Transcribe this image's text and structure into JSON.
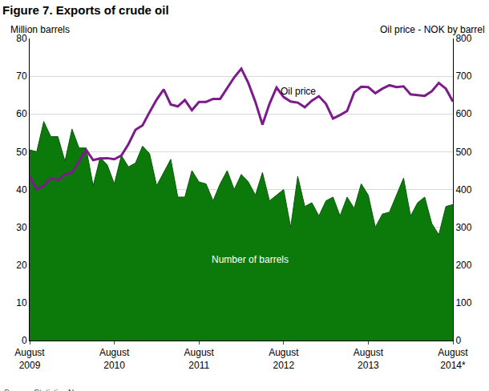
{
  "chart_data": {
    "type": "area",
    "title": "Figure 7. Exports of crude oil",
    "ylabel": "Million barrels",
    "y2label": "Oil price - NOK by barrel",
    "source": "Source: Statistics Norway.",
    "grid": true,
    "categories": [
      "August 2009",
      null,
      null,
      null,
      null,
      null,
      null,
      null,
      null,
      null,
      null,
      null,
      "August 2010",
      null,
      null,
      null,
      null,
      null,
      null,
      null,
      null,
      null,
      null,
      null,
      "August 2011",
      null,
      null,
      null,
      null,
      null,
      null,
      null,
      null,
      null,
      null,
      null,
      "August 2012",
      null,
      null,
      null,
      null,
      null,
      null,
      null,
      null,
      null,
      null,
      null,
      "August 2013",
      null,
      null,
      null,
      null,
      null,
      null,
      null,
      null,
      null,
      null,
      null,
      "August 2014*"
    ],
    "series": [
      {
        "name": "Number of barrels",
        "type": "area",
        "color": "#0b7a0b",
        "values": [
          50.5,
          50,
          58,
          54,
          54,
          47.5,
          56,
          51,
          51,
          41,
          48.5,
          46.5,
          41.5,
          49,
          46,
          47,
          51.5,
          49.5,
          41,
          44.5,
          48,
          38,
          38,
          45,
          42,
          41.5,
          37,
          41.5,
          45,
          40,
          44,
          42,
          38.5,
          44.5,
          37,
          38.5,
          40,
          30,
          43.5,
          35.5,
          36.5,
          33,
          37,
          38,
          33,
          38,
          35,
          41.5,
          38.5,
          30,
          33.5,
          34,
          38.5,
          43,
          33,
          36.5,
          38,
          31,
          28,
          35.5,
          36
        ]
      },
      {
        "name": "Oil price",
        "type": "line",
        "axis": "y2",
        "color": "#7d1a8c",
        "values": [
          435,
          400,
          410,
          430,
          425,
          440,
          445,
          475,
          505,
          478,
          482,
          483,
          480,
          490,
          520,
          558,
          570,
          605,
          638,
          665,
          625,
          620,
          637,
          610,
          632,
          632,
          640,
          640,
          668,
          697,
          720,
          682,
          632,
          572,
          627,
          670,
          645,
          633,
          630,
          618,
          635,
          647,
          627,
          588,
          597,
          608,
          657,
          672,
          671,
          655,
          667,
          676,
          671,
          673,
          652,
          650,
          648,
          660,
          682,
          667,
          633
        ]
      }
    ],
    "ylim": [
      0,
      80
    ],
    "yticks": [
      0,
      10,
      20,
      30,
      40,
      50,
      60,
      70,
      80
    ],
    "y2lim": [
      0,
      800
    ],
    "y2ticks": [
      0,
      100,
      200,
      300,
      400,
      500,
      600,
      700,
      800
    ]
  }
}
